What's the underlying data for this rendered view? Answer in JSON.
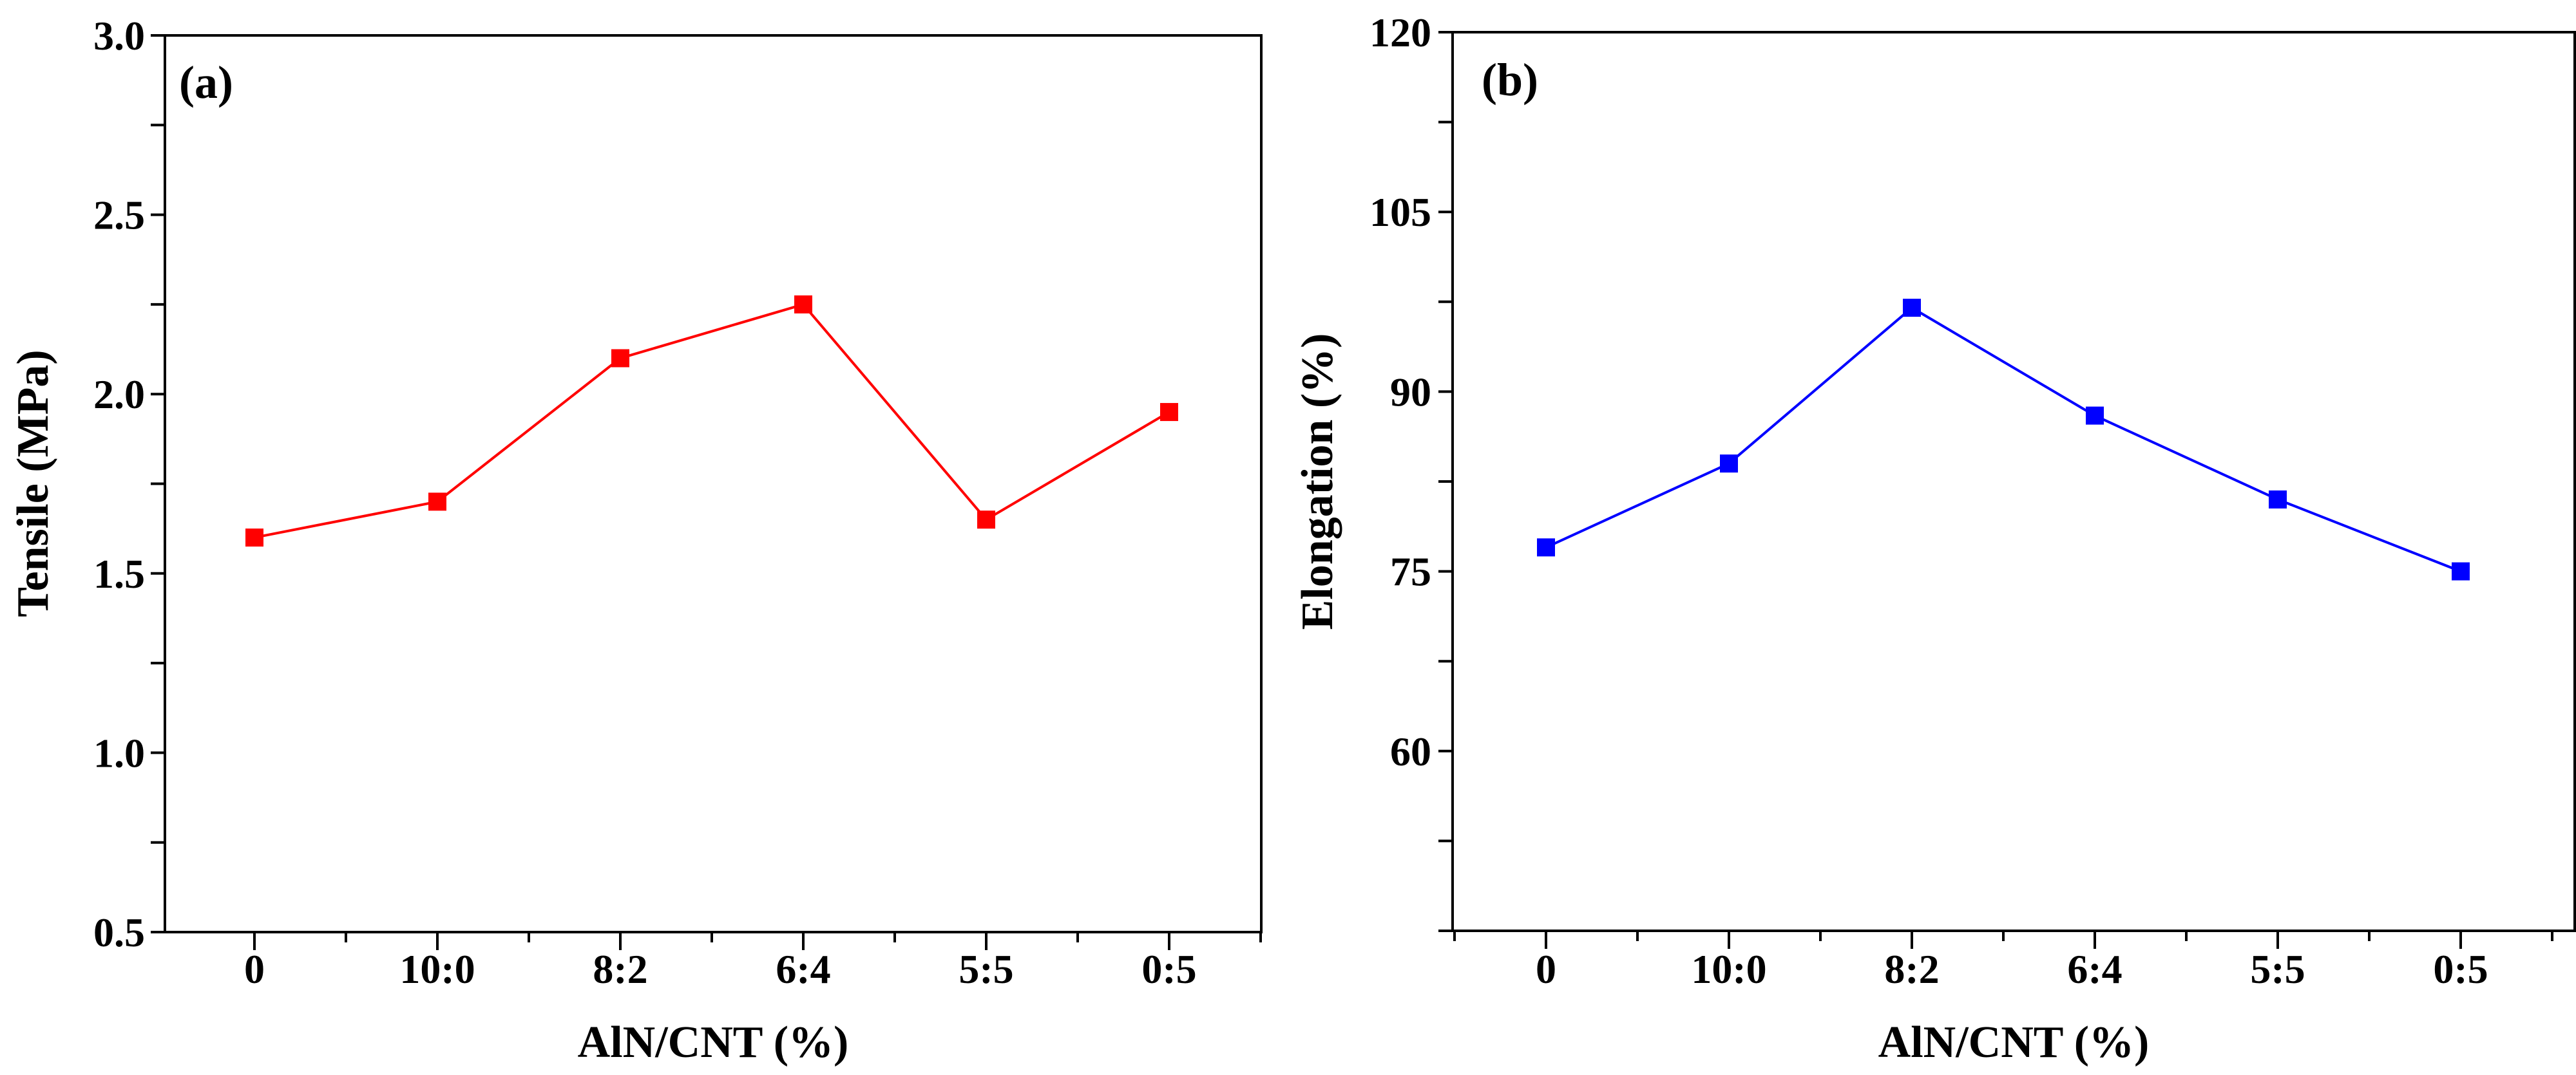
{
  "chart_data": [
    {
      "type": "line",
      "panel_label": "(a)",
      "categories": [
        "0",
        "10:0",
        "8:2",
        "6:4",
        "5:5",
        "0:5"
      ],
      "series": [
        {
          "name": "Tensile",
          "values": [
            1.6,
            1.7,
            2.1,
            2.25,
            1.65,
            1.95
          ],
          "color": "#ff0000"
        }
      ],
      "xlabel": "AlN/CNT (%)",
      "ylabel": "Tensile (MPa)",
      "ylim": [
        0.5,
        3.0
      ],
      "yticks": [
        0.5,
        1.0,
        1.5,
        2.0,
        2.5,
        3.0
      ],
      "ytick_labels": [
        "0.5",
        "1.0",
        "1.5",
        "2.0",
        "2.5",
        "3.0"
      ],
      "grid": false
    },
    {
      "type": "line",
      "panel_label": "(b)",
      "categories": [
        "0",
        "10:0",
        "8:2",
        "6:4",
        "5:5",
        "0:5"
      ],
      "series": [
        {
          "name": "Elongation",
          "values": [
            77,
            84,
            97,
            88,
            81,
            75
          ],
          "color": "#0000ff"
        }
      ],
      "xlabel": "AlN/CNT (%)",
      "ylabel": "Elongation (%)",
      "ylim": [
        45,
        120
      ],
      "yticks": [
        60,
        75,
        90,
        105,
        120
      ],
      "ytick_labels": [
        "60",
        "75",
        "90",
        "105",
        "120"
      ],
      "grid": false
    }
  ]
}
